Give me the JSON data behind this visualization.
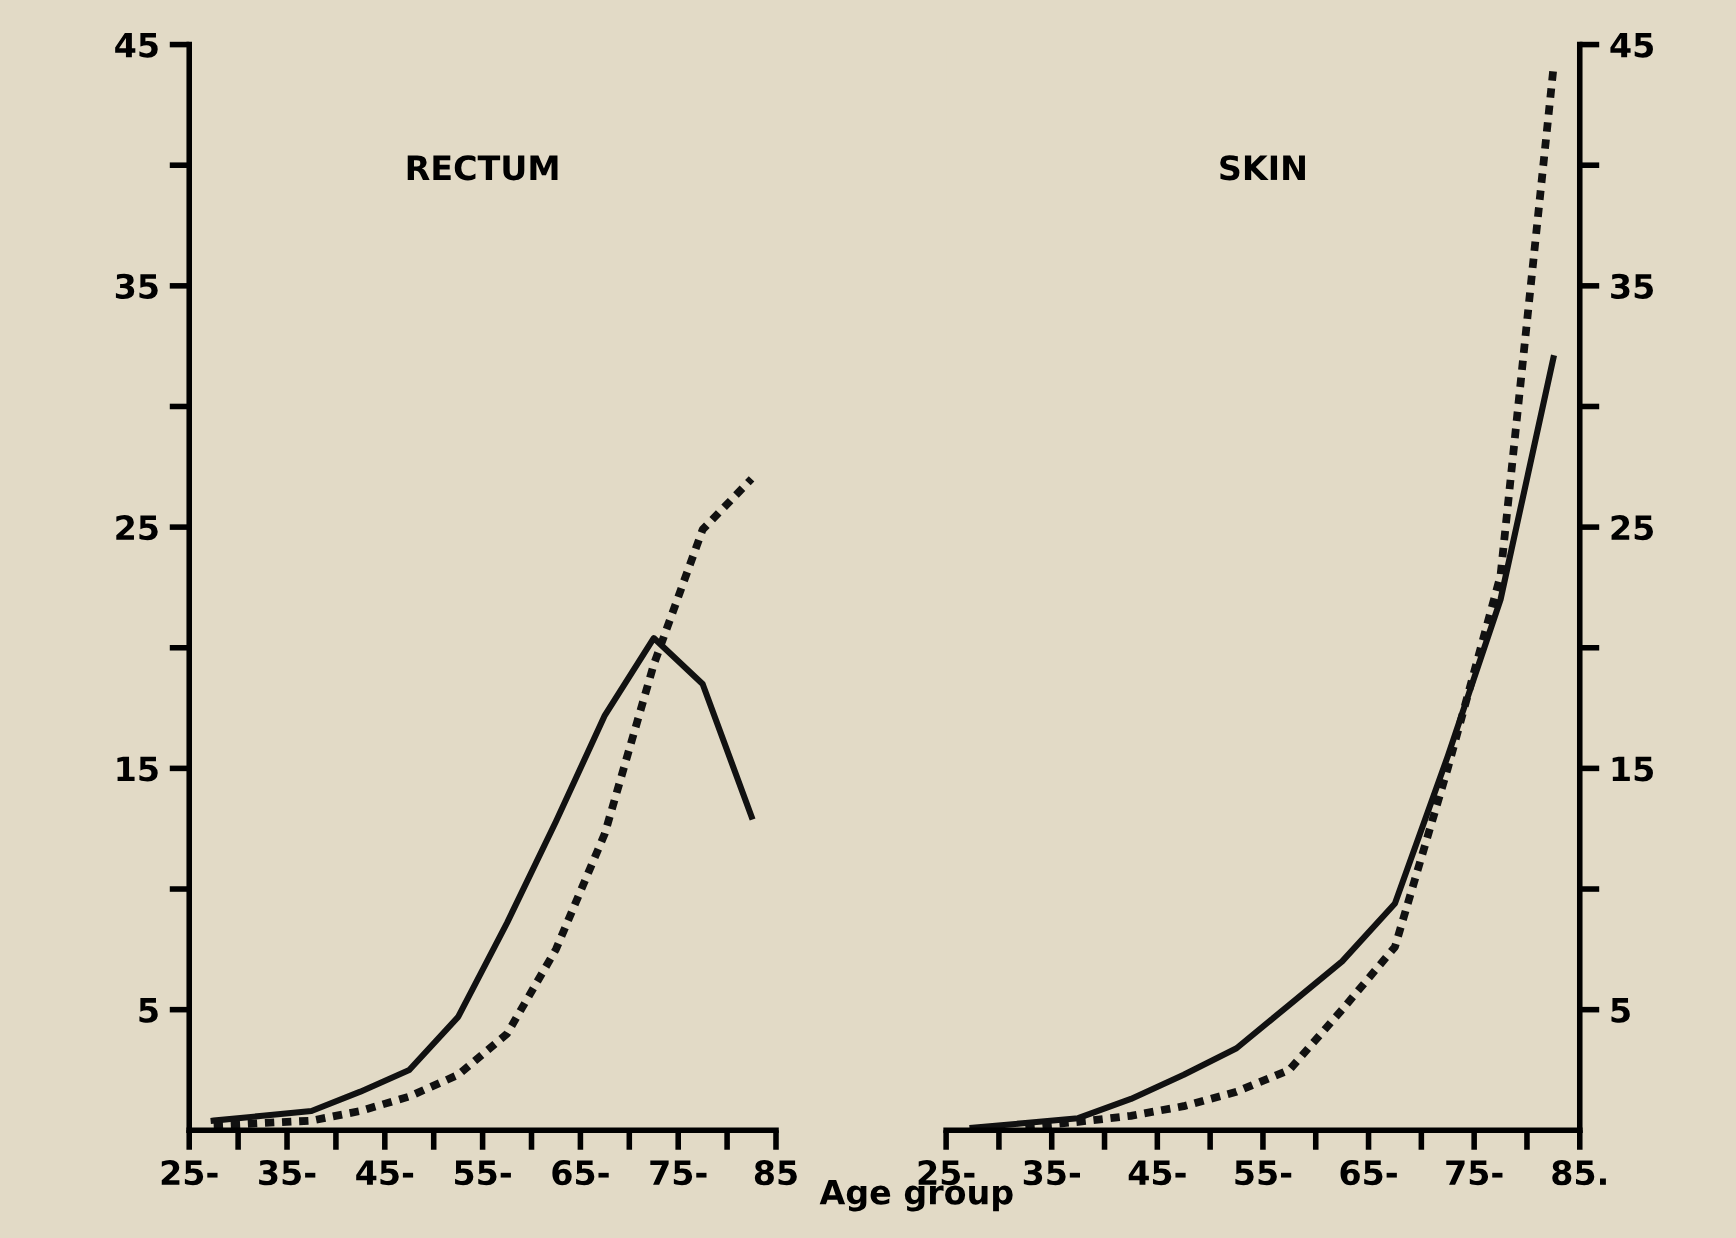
{
  "chart_data": [
    {
      "type": "line",
      "title": "RECTUM",
      "xlabel": "Age group",
      "xlim": [
        25,
        85
      ],
      "ylim": [
        0,
        45
      ],
      "xticks": [
        {
          "value": 25,
          "label": "25-"
        },
        {
          "value": 30,
          "label": null
        },
        {
          "value": 35,
          "label": "35-"
        },
        {
          "value": 40,
          "label": null
        },
        {
          "value": 45,
          "label": "45-"
        },
        {
          "value": 50,
          "label": null
        },
        {
          "value": 55,
          "label": "55-"
        },
        {
          "value": 60,
          "label": null
        },
        {
          "value": 65,
          "label": "65-"
        },
        {
          "value": 70,
          "label": null
        },
        {
          "value": 75,
          "label": "75-"
        },
        {
          "value": 80,
          "label": null
        },
        {
          "value": 85,
          "label": "85"
        }
      ],
      "yticks": [
        {
          "value": 5,
          "label": "5"
        },
        {
          "value": 10,
          "label": null
        },
        {
          "value": 15,
          "label": "15"
        },
        {
          "value": 20,
          "label": null
        },
        {
          "value": 25,
          "label": "25"
        },
        {
          "value": 30,
          "label": null
        },
        {
          "value": 35,
          "label": "35"
        },
        {
          "value": 40,
          "label": null
        },
        {
          "value": 45,
          "label": "45"
        }
      ],
      "x": [
        27.5,
        32.5,
        37.5,
        42.5,
        47.5,
        52.5,
        57.5,
        62.5,
        67.5,
        72.5,
        77.5,
        82.5
      ],
      "series": [
        {
          "color": "#111111",
          "line_style": "solid",
          "values": [
            0.4,
            0.6,
            0.8,
            1.6,
            2.5,
            4.7,
            8.6,
            12.8,
            17.2,
            20.4,
            18.5,
            13.0
          ]
        },
        {
          "color": "#111111",
          "line_style": "dotted",
          "values": [
            0.2,
            0.3,
            0.4,
            0.8,
            1.4,
            2.3,
            4.0,
            7.5,
            12.3,
            19.3,
            24.9,
            27.0
          ]
        }
      ],
      "grid": false,
      "legend": false
    },
    {
      "type": "line",
      "title": "SKIN",
      "xlim": [
        25,
        85
      ],
      "ylim": [
        0,
        45
      ],
      "xticks": [
        {
          "value": 25,
          "label": "25-"
        },
        {
          "value": 30,
          "label": null
        },
        {
          "value": 35,
          "label": "35-"
        },
        {
          "value": 40,
          "label": null
        },
        {
          "value": 45,
          "label": "45-"
        },
        {
          "value": 50,
          "label": null
        },
        {
          "value": 55,
          "label": "55-"
        },
        {
          "value": 60,
          "label": null
        },
        {
          "value": 65,
          "label": "65-"
        },
        {
          "value": 70,
          "label": null
        },
        {
          "value": 75,
          "label": "75-"
        },
        {
          "value": 80,
          "label": null
        },
        {
          "value": 85,
          "label": "85."
        }
      ],
      "yticks": [
        {
          "value": 5,
          "label": "5"
        },
        {
          "value": 10,
          "label": null
        },
        {
          "value": 15,
          "label": "15"
        },
        {
          "value": 20,
          "label": null
        },
        {
          "value": 25,
          "label": "25"
        },
        {
          "value": 30,
          "label": null
        },
        {
          "value": 35,
          "label": "35"
        },
        {
          "value": 40,
          "label": null
        },
        {
          "value": 45,
          "label": "45"
        }
      ],
      "x": [
        27.5,
        32.5,
        37.5,
        42.5,
        47.5,
        52.5,
        57.5,
        62.5,
        67.5,
        72.5,
        77.5,
        82.5
      ],
      "series": [
        {
          "color": "#111111",
          "line_style": "solid",
          "values": [
            0.1,
            0.3,
            0.5,
            1.3,
            2.3,
            3.4,
            5.2,
            7.0,
            9.4,
            15.5,
            22.0,
            32.0
          ]
        },
        {
          "color": "#111111",
          "line_style": "dotted",
          "values": [
            null,
            0.15,
            0.35,
            0.6,
            1.0,
            1.6,
            2.5,
            5.0,
            7.6,
            15.0,
            23.0,
            44.0
          ]
        }
      ],
      "grid": false,
      "legend": false
    }
  ]
}
